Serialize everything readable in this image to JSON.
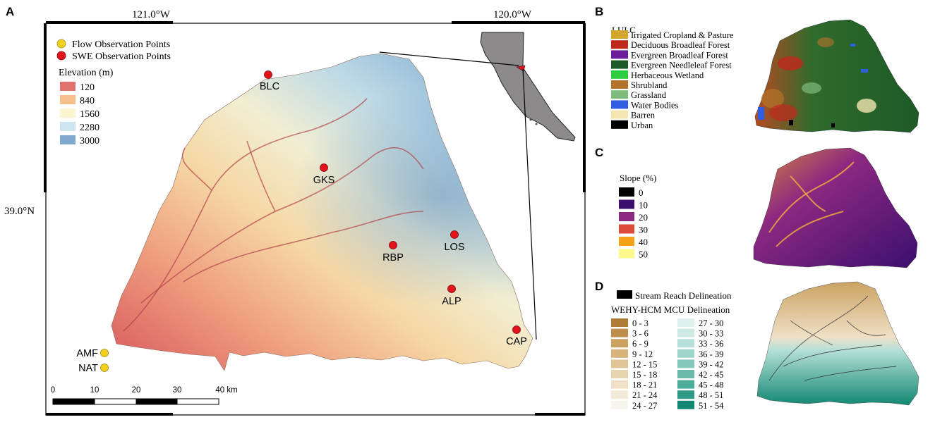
{
  "panels": {
    "a": {
      "letter": "A",
      "coords": {
        "lon1": "121.0°W",
        "lon2": "120.0°W",
        "lat1": "39.0°N"
      },
      "legend": {
        "flow": "Flow Observation Points",
        "swe": "SWE Observation Points",
        "elev_title": "Elevation (m)",
        "elev_items": [
          {
            "label": "120",
            "color": "#e07370"
          },
          {
            "label": "840",
            "color": "#f6c08c"
          },
          {
            "label": "1560",
            "color": "#fbf6cf"
          },
          {
            "label": "2280",
            "color": "#cfe6f0"
          },
          {
            "label": "3000",
            "color": "#7fa8cf"
          }
        ]
      },
      "swe_points": [
        "BLC",
        "GKS",
        "RBP",
        "LOS",
        "ALP",
        "CAP"
      ],
      "flow_points": [
        "AMF",
        "NAT"
      ],
      "scalebar": {
        "labels": [
          "0",
          "10",
          "20",
          "30",
          "40 km"
        ]
      }
    },
    "b": {
      "letter": "B",
      "legend_title": "LULC",
      "items": [
        {
          "label": "Irrigated Cropland & Pasture",
          "color": "#d4a52c"
        },
        {
          "label": "Deciduous Broadleaf Forest",
          "color": "#c0281c"
        },
        {
          "label": "Evergreen Broadleaf Forest",
          "color": "#6a1b9a"
        },
        {
          "label": "Evergreen Needleleaf Forest",
          "color": "#1e5a28"
        },
        {
          "label": "Herbaceous Wetland",
          "color": "#2ecc40"
        },
        {
          "label": "Shrubland",
          "color": "#b5732a"
        },
        {
          "label": "Grassland",
          "color": "#7dbb7d"
        },
        {
          "label": "Water Bodies",
          "color": "#2f5fe0"
        },
        {
          "label": "Barren",
          "color": "#f3e6b0"
        },
        {
          "label": "Urban",
          "color": "#000000"
        }
      ]
    },
    "c": {
      "letter": "C",
      "legend_title": "Slope (%)",
      "items": [
        {
          "label": "0",
          "color": "#000000"
        },
        {
          "label": "10",
          "color": "#3b0f6f"
        },
        {
          "label": "20",
          "color": "#8c2981"
        },
        {
          "label": "30",
          "color": "#de4a3a"
        },
        {
          "label": "40",
          "color": "#f7a11a"
        },
        {
          "label": "50",
          "color": "#fcf98a"
        }
      ]
    },
    "d": {
      "letter": "D",
      "stream": "Stream Reach Delineation",
      "mcu_title": "WEHY-HCM MCU Delineation",
      "col1": [
        {
          "label": "0 - 3",
          "color": "#b07c3a"
        },
        {
          "label": "3 - 6",
          "color": "#bf8e4a"
        },
        {
          "label": "6 - 9",
          "color": "#cba263"
        },
        {
          "label": "9 - 12",
          "color": "#d6b47c"
        },
        {
          "label": "12 - 15",
          "color": "#e0c497"
        },
        {
          "label": "15 - 18",
          "color": "#e9d4b1"
        },
        {
          "label": "18 - 21",
          "color": "#efe0c6"
        },
        {
          "label": "21 - 24",
          "color": "#f4ead9"
        },
        {
          "label": "24 - 27",
          "color": "#f7f4ee"
        }
      ],
      "col2": [
        {
          "label": "27 - 30",
          "color": "#dff1ee"
        },
        {
          "label": "30 - 33",
          "color": "#cdeae5"
        },
        {
          "label": "33 - 36",
          "color": "#b6e0d8"
        },
        {
          "label": "36 - 39",
          "color": "#9ed5cb"
        },
        {
          "label": "39 - 42",
          "color": "#84c8bc"
        },
        {
          "label": "42 - 45",
          "color": "#69baab"
        },
        {
          "label": "45 - 48",
          "color": "#4dab99"
        },
        {
          "label": "48 - 51",
          "color": "#2f9a86"
        },
        {
          "label": "51 - 54",
          "color": "#128873"
        }
      ]
    }
  }
}
